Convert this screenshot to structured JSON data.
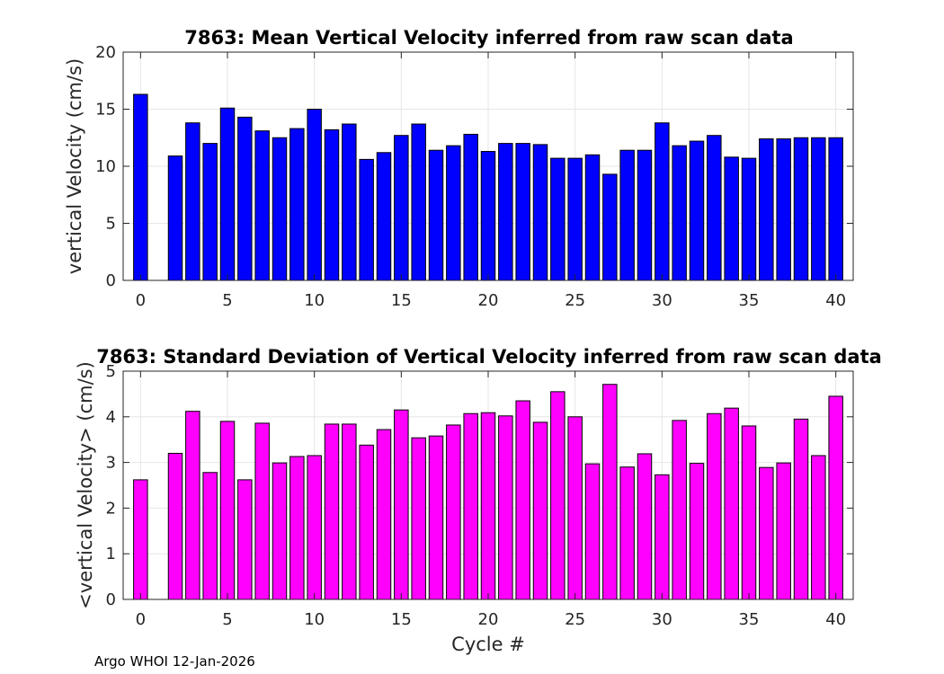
{
  "chart_data": [
    {
      "type": "bar",
      "title": "7863: Mean Vertical Velocity inferred from raw scan data",
      "xlabel": "",
      "ylabel": "vertical Velocity (cm/s)",
      "xlim": [
        -1,
        41
      ],
      "ylim": [
        0,
        20
      ],
      "xticks": [
        0,
        5,
        10,
        15,
        20,
        25,
        30,
        35,
        40
      ],
      "yticks": [
        0,
        5,
        10,
        15,
        20
      ],
      "grid": true,
      "color": "#0000ff",
      "x": [
        0,
        2,
        3,
        4,
        5,
        6,
        7,
        8,
        9,
        10,
        11,
        12,
        13,
        14,
        15,
        16,
        17,
        18,
        19,
        20,
        21,
        22,
        23,
        24,
        25,
        26,
        27,
        28,
        29,
        30,
        31,
        32,
        33,
        34,
        35,
        36,
        37,
        38,
        39,
        40
      ],
      "values": [
        16.3,
        10.9,
        13.8,
        12.0,
        15.1,
        14.3,
        13.1,
        12.5,
        13.3,
        15.0,
        13.2,
        13.7,
        10.6,
        11.2,
        12.7,
        13.7,
        11.4,
        11.8,
        12.8,
        11.3,
        12.0,
        12.0,
        11.9,
        10.7,
        10.7,
        11.0,
        9.3,
        11.4,
        11.4,
        13.8,
        11.8,
        12.2,
        12.7,
        10.8,
        10.7,
        12.4,
        12.4,
        12.5,
        12.5,
        12.5
      ]
    },
    {
      "type": "bar",
      "title": "7863: Standard Deviation of Vertical Velocity inferred from raw scan data",
      "xlabel": "Cycle #",
      "ylabel": "<vertical Velocity> (cm/s)",
      "xlim": [
        -1,
        41
      ],
      "ylim": [
        0,
        5
      ],
      "xticks": [
        0,
        5,
        10,
        15,
        20,
        25,
        30,
        35,
        40
      ],
      "yticks": [
        0,
        1,
        2,
        3,
        4,
        5
      ],
      "grid": true,
      "color": "#ff00ff",
      "x": [
        0,
        2,
        3,
        4,
        5,
        6,
        7,
        8,
        9,
        10,
        11,
        12,
        13,
        14,
        15,
        16,
        17,
        18,
        19,
        20,
        21,
        22,
        23,
        24,
        25,
        26,
        27,
        28,
        29,
        30,
        31,
        32,
        33,
        34,
        35,
        36,
        37,
        38,
        39,
        40
      ],
      "values": [
        2.62,
        3.2,
        4.12,
        2.78,
        3.9,
        2.62,
        3.86,
        2.99,
        3.13,
        3.15,
        3.84,
        3.84,
        3.38,
        3.72,
        4.15,
        3.54,
        3.58,
        3.82,
        4.07,
        4.09,
        4.02,
        4.35,
        3.88,
        4.55,
        4.0,
        2.97,
        4.71,
        2.9,
        3.19,
        2.73,
        3.92,
        2.98,
        4.07,
        4.19,
        3.8,
        2.89,
        2.99,
        3.95,
        3.15,
        4.45
      ]
    }
  ],
  "footer": "Argo WHOI 12-Jan-2026"
}
